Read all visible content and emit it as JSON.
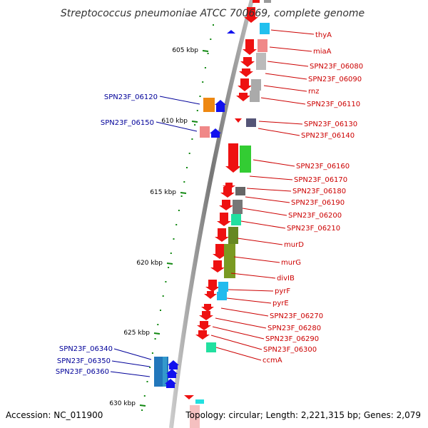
{
  "title": "Streptococcus pneumoniae ATCC 700669, complete genome",
  "footer": {
    "accession": "Accession: NC_011900",
    "summary": "Topology: circular; Length: 2,221,315 bp; Genes: 2,079"
  },
  "kbp_ticks": [
    "605 kbp",
    "610 kbp",
    "615 kbp",
    "620 kbp",
    "625 kbp",
    "630 kbp"
  ],
  "right_genes": [
    "thyA",
    "miaA",
    "SPN23F_06080",
    "SPN23F_06090",
    "rnz",
    "SPN23F_06110",
    "SPN23F_06130",
    "SPN23F_06140",
    "SPN23F_06160",
    "SPN23F_06170",
    "SPN23F_06180",
    "SPN23F_06190",
    "SPN23F_06200",
    "SPN23F_06210",
    "murD",
    "murG",
    "divIB",
    "pyrF",
    "pyrE",
    "SPN23F_06270",
    "SPN23F_06280",
    "SPN23F_06290",
    "SPN23F_06300",
    "ccmA"
  ],
  "left_genes": [
    "SPN23F_06120",
    "SPN23F_06150",
    "SPN23F_06340",
    "SPN23F_06350",
    "SPN23F_06360"
  ],
  "colors": {
    "forward_strand": "#ee1111",
    "reverse_strand": "#1111ee",
    "right_label": "#cc0000",
    "left_label": "#000099",
    "tick": "#118811",
    "backbone": "#888888"
  }
}
